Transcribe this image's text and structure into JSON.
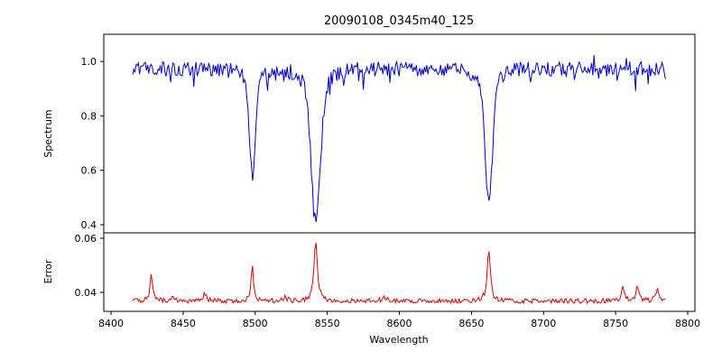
{
  "chart_data": [
    {
      "type": "line",
      "panel": "top",
      "title": "20090108_0345m40_125",
      "ylabel": "Spectrum",
      "color": "#0000cc",
      "xlim": [
        8395,
        8805
      ],
      "ylim": [
        0.37,
        1.1
      ],
      "grid": false,
      "legend": "none",
      "y_ticks": [
        {
          "value": 1.0,
          "label": "1.0"
        },
        {
          "value": 0.8,
          "label": "0.8"
        },
        {
          "value": 0.6,
          "label": "0.6"
        },
        {
          "value": 0.4,
          "label": "0.4"
        }
      ],
      "x_range_data": [
        8415,
        8785
      ],
      "continuum": 0.972,
      "noise_amplitude": 0.027,
      "absorption_lines": [
        {
          "center": 8498,
          "depth": 0.4,
          "width": 2.0
        },
        {
          "center": 8542,
          "depth": 0.55,
          "width": 3.2
        },
        {
          "center": 8662,
          "depth": 0.48,
          "width": 2.6
        }
      ],
      "line_minima": [
        {
          "x": 8498,
          "y": 0.57
        },
        {
          "x": 8542,
          "y": 0.42
        },
        {
          "x": 8662,
          "y": 0.49
        }
      ]
    },
    {
      "type": "line",
      "panel": "bottom",
      "ylabel": "Error",
      "xlabel": "Wavelength",
      "color": "#dd0000",
      "xlim": [
        8395,
        8805
      ],
      "ylim": [
        0.033,
        0.062
      ],
      "grid": false,
      "legend": "none",
      "y_ticks": [
        {
          "value": 0.06,
          "label": "0.06"
        },
        {
          "value": 0.04,
          "label": "0.04"
        }
      ],
      "x_ticks": [
        {
          "value": 8400,
          "label": "8400"
        },
        {
          "value": 8450,
          "label": "8450"
        },
        {
          "value": 8500,
          "label": "8500"
        },
        {
          "value": 8550,
          "label": "8550"
        },
        {
          "value": 8600,
          "label": "8600"
        },
        {
          "value": 8650,
          "label": "8650"
        },
        {
          "value": 8700,
          "label": "8700"
        },
        {
          "value": 8750,
          "label": "8750"
        },
        {
          "value": 8800,
          "label": "8800"
        }
      ],
      "x_range_data": [
        8415,
        8785
      ],
      "baseline": 0.0368,
      "noise_amplitude": 0.0009,
      "peaks": [
        {
          "center": 8428,
          "height": 0.01,
          "width": 1.0
        },
        {
          "center": 8443,
          "height": 0.0015,
          "width": 1.5
        },
        {
          "center": 8465,
          "height": 0.0025,
          "width": 1.5
        },
        {
          "center": 8498,
          "height": 0.0135,
          "width": 1.0
        },
        {
          "center": 8520,
          "height": 0.0012,
          "width": 2.0
        },
        {
          "center": 8542,
          "height": 0.022,
          "width": 1.4
        },
        {
          "center": 8590,
          "height": 0.0015,
          "width": 2.0
        },
        {
          "center": 8662,
          "height": 0.019,
          "width": 1.3
        },
        {
          "center": 8755,
          "height": 0.005,
          "width": 1.2
        },
        {
          "center": 8765,
          "height": 0.006,
          "width": 1.2
        },
        {
          "center": 8779,
          "height": 0.004,
          "width": 1.5
        }
      ],
      "peak_maxima": [
        {
          "x": 8428,
          "y": 0.047
        },
        {
          "x": 8498,
          "y": 0.05
        },
        {
          "x": 8542,
          "y": 0.059
        },
        {
          "x": 8662,
          "y": 0.056
        }
      ]
    }
  ]
}
